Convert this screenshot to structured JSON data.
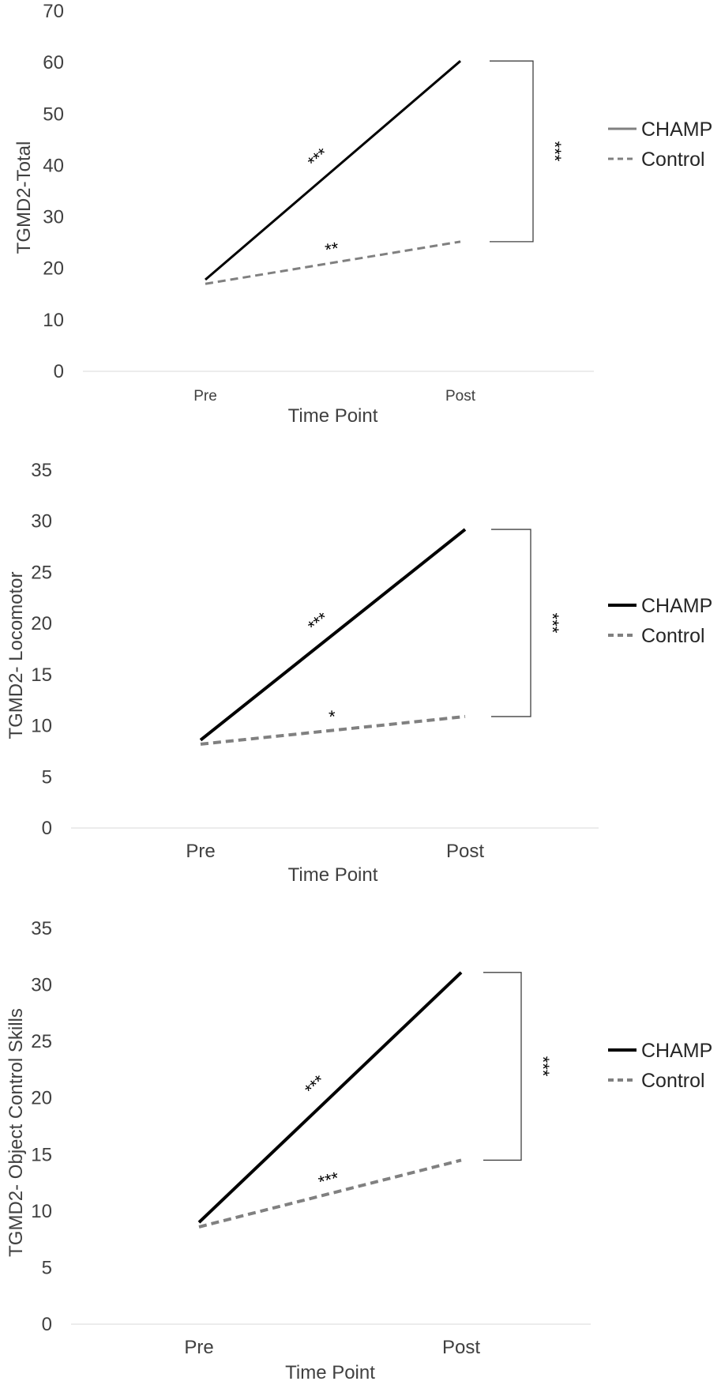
{
  "chart_data": [
    {
      "type": "line",
      "xlabel": "Time Point",
      "ylabel": "TGMD2-Total",
      "categories": [
        "Pre",
        "Post"
      ],
      "ylim": [
        0,
        70
      ],
      "yticks": [
        "0",
        "10",
        "20",
        "30",
        "40",
        "50",
        "60",
        "70"
      ],
      "series": [
        {
          "name": "CHAMP",
          "values": [
            17.8,
            60.3
          ],
          "color": "#000000",
          "style": "solid"
        },
        {
          "name": "Control",
          "values": [
            17.0,
            25.2
          ],
          "color": "#808080",
          "style": "dashed"
        }
      ],
      "annotations": {
        "champ_sig": "***",
        "control_sig": "**",
        "between_sig": "***"
      },
      "legend_position": "right",
      "grid": false
    },
    {
      "type": "line",
      "xlabel": "Time Point",
      "ylabel": "TGMD2- Locomotor",
      "categories": [
        "Pre",
        "Post"
      ],
      "ylim": [
        0,
        35
      ],
      "yticks": [
        "0",
        "5",
        "10",
        "15",
        "20",
        "25",
        "30",
        "35"
      ],
      "series": [
        {
          "name": "CHAMP",
          "values": [
            8.6,
            29.2
          ],
          "color": "#000000",
          "style": "solid"
        },
        {
          "name": "Control",
          "values": [
            8.2,
            10.9
          ],
          "color": "#808080",
          "style": "dashed"
        }
      ],
      "annotations": {
        "champ_sig": "***",
        "control_sig": "*",
        "between_sig": "***"
      },
      "legend_position": "right",
      "grid": false
    },
    {
      "type": "line",
      "xlabel": "Time Point",
      "ylabel": "TGMD2- Object Control Skills",
      "categories": [
        "Pre",
        "Post"
      ],
      "ylim": [
        0,
        35
      ],
      "yticks": [
        "0",
        "5",
        "10",
        "15",
        "20",
        "25",
        "30",
        "35"
      ],
      "series": [
        {
          "name": "CHAMP",
          "values": [
            9.0,
            31.1
          ],
          "color": "#000000",
          "style": "solid"
        },
        {
          "name": "Control",
          "values": [
            8.6,
            14.5
          ],
          "color": "#808080",
          "style": "dashed"
        }
      ],
      "annotations": {
        "champ_sig": "***",
        "control_sig": "***",
        "between_sig": "***"
      },
      "legend_position": "right",
      "grid": false
    }
  ]
}
